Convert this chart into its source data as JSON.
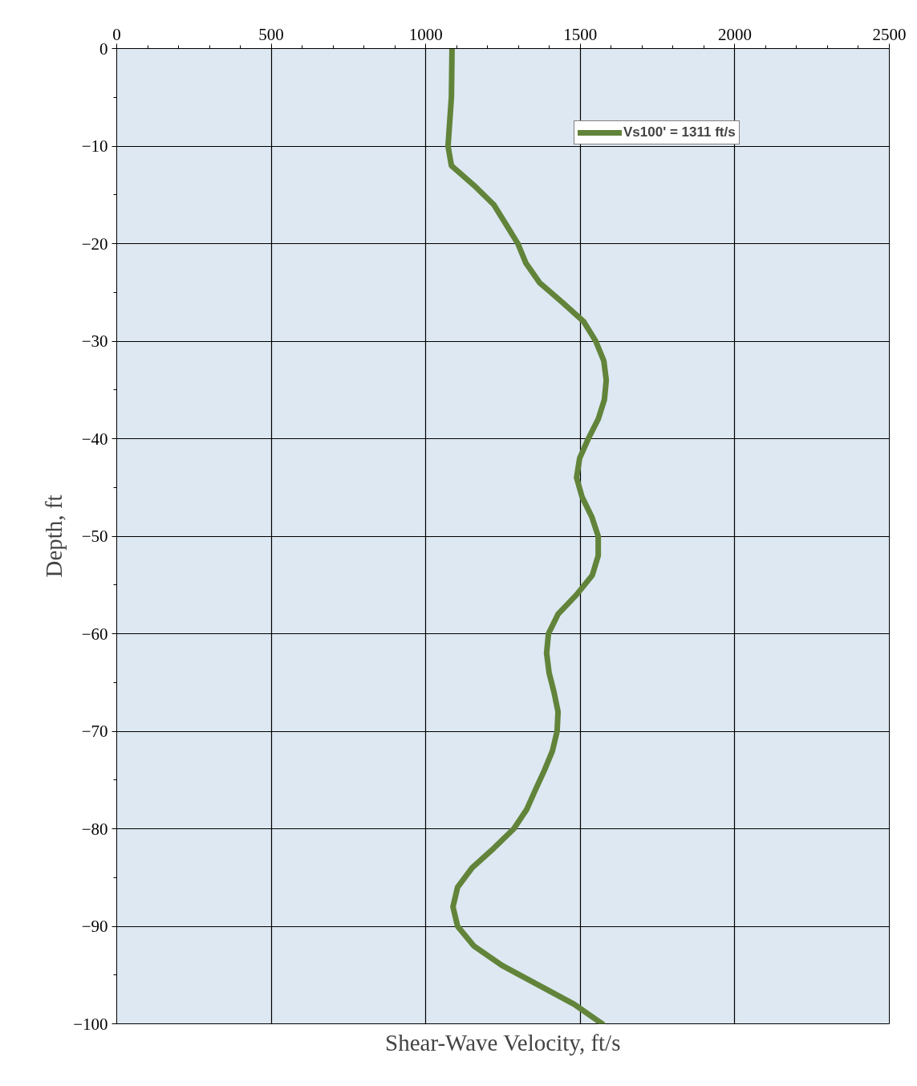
{
  "chart_data": {
    "type": "line",
    "xlabel": "Shear-Wave Velocity, ft/s",
    "ylabel": "Depth, ft",
    "xlim": [
      0,
      2500
    ],
    "xticks": [
      0,
      500,
      1000,
      1500,
      2000,
      2500
    ],
    "ylim": [
      -100,
      0
    ],
    "yticks": [
      0,
      -10,
      -20,
      -30,
      -40,
      -50,
      -60,
      -70,
      -80,
      -90,
      -100
    ],
    "grid": true,
    "legend": "top right",
    "marker": "none",
    "line_style": "solid",
    "series": [
      {
        "name": "Vs100' = 1311 ft/s",
        "color": "#62843a",
        "x": [
          1085,
          1083,
          1072,
          1083,
          1155,
          1220,
          1259,
          1298,
          1324,
          1368,
          1441,
          1511,
          1550,
          1576,
          1584,
          1578,
          1558,
          1526,
          1498,
          1488,
          1506,
          1537,
          1558,
          1558,
          1539,
          1488,
          1428,
          1397,
          1391,
          1399,
          1415,
          1428,
          1425,
          1410,
          1384,
          1355,
          1327,
          1285,
          1220,
          1150,
          1103,
          1088,
          1103,
          1155,
          1246,
          1363,
          1480,
          1571
        ],
        "values": [
          0,
          -5,
          -10,
          -12,
          -14,
          -16,
          -18,
          -20,
          -22,
          -24,
          -26,
          -28,
          -30,
          -32,
          -34,
          -36,
          -38,
          -40,
          -42,
          -44,
          -46,
          -48,
          -50,
          -52,
          -54,
          -56,
          -58,
          -60,
          -62,
          -64,
          -66,
          -68,
          -70,
          -72,
          -74,
          -76,
          -78,
          -80,
          -82,
          -84,
          -86,
          -88,
          -90,
          -92,
          -94,
          -96,
          -98,
          -100
        ]
      }
    ]
  }
}
